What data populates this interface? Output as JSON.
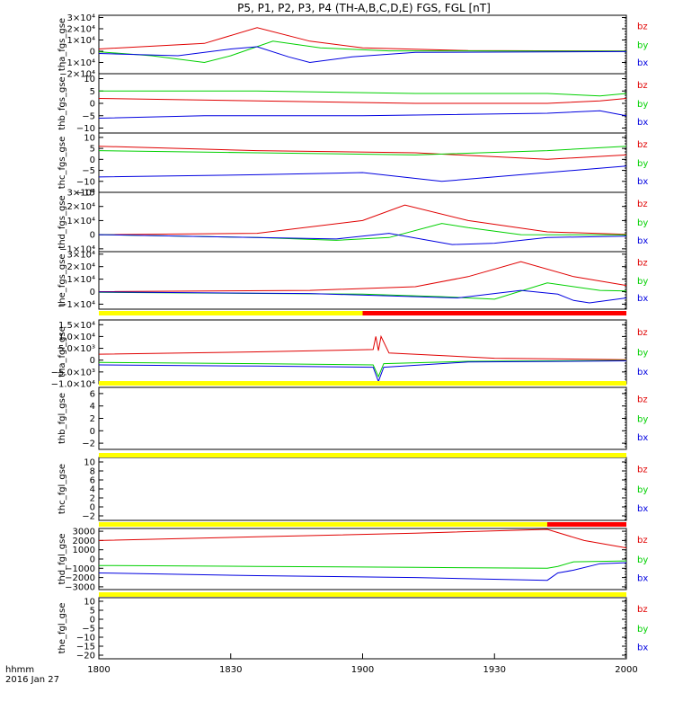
{
  "title": "P5, P1, P2, P3, P4 (TH-A,B,C,D,E) FGS, FGL [nT]",
  "time_axis": {
    "ticks": [
      "1800",
      "1830",
      "1900",
      "1930",
      "2000"
    ],
    "row_label": "hhmm",
    "date_label": "2016 Jan 27"
  },
  "colors": {
    "bz": "#e00000",
    "by": "#00d000",
    "bx": "#0000e0",
    "bar_yellow": "#ffff00",
    "bar_red": "#ff0000"
  },
  "legend": [
    "bz",
    "by",
    "bx"
  ],
  "status_bars": [
    {
      "after_panel": 4,
      "segments": [
        {
          "from": 0,
          "to": 0.5,
          "color": "yellow"
        },
        {
          "from": 0.5,
          "to": 1,
          "color": "red"
        }
      ]
    },
    {
      "after_panel": 5,
      "segments": [
        {
          "from": 0,
          "to": 1,
          "color": "yellow"
        }
      ]
    },
    {
      "after_panel": 6,
      "segments": [
        {
          "from": 0,
          "to": 1,
          "color": "yellow"
        }
      ]
    },
    {
      "after_panel": 7,
      "segments": [
        {
          "from": 0,
          "to": 0.85,
          "color": "yellow"
        },
        {
          "from": 0.85,
          "to": 1,
          "color": "red"
        }
      ]
    },
    {
      "after_panel": 8,
      "segments": [
        {
          "from": 0,
          "to": 1,
          "color": "yellow"
        }
      ]
    }
  ],
  "chart_data": [
    {
      "type": "line",
      "ylabel": "tha_fgs_gse",
      "ticks": [
        "3×10⁴",
        "2×10⁴",
        "1×10⁴",
        "0",
        "−1×10⁴",
        "−2×10⁴"
      ],
      "tick_values": [
        30000,
        20000,
        10000,
        0,
        -10000,
        -20000
      ],
      "ylim": [
        -20000,
        32000
      ],
      "series": [
        {
          "name": "bz",
          "x": [
            0,
            0.2,
            0.3,
            0.4,
            0.5,
            0.7,
            1.0
          ],
          "y": [
            2000,
            7000,
            21000,
            9000,
            3000,
            600,
            200
          ]
        },
        {
          "name": "by",
          "x": [
            0,
            0.1,
            0.2,
            0.25,
            0.33,
            0.42,
            0.55,
            1.0
          ],
          "y": [
            -500,
            -4000,
            -10000,
            -4000,
            9000,
            3000,
            300,
            100
          ]
        },
        {
          "name": "bx",
          "x": [
            0,
            0.15,
            0.25,
            0.3,
            0.36,
            0.4,
            0.48,
            0.6,
            1.0
          ],
          "y": [
            -2000,
            -4000,
            2000,
            4000,
            -5000,
            -10000,
            -5000,
            -1000,
            -300
          ]
        }
      ]
    },
    {
      "type": "line",
      "ylabel": "thb_fgs_gse",
      "ticks": [
        "10",
        "5",
        "0",
        "−5",
        "−10"
      ],
      "tick_values": [
        10,
        5,
        0,
        -5,
        -10
      ],
      "ylim": [
        -12,
        12
      ],
      "series": [
        {
          "name": "bz",
          "x": [
            0,
            0.3,
            0.6,
            0.85,
            0.95,
            1.0
          ],
          "y": [
            2,
            1,
            0,
            0,
            1,
            2
          ]
        },
        {
          "name": "by",
          "x": [
            0,
            0.3,
            0.6,
            0.85,
            0.95,
            1.0
          ],
          "y": [
            5,
            5,
            4,
            4,
            3,
            4
          ]
        },
        {
          "name": "bx",
          "x": [
            0,
            0.2,
            0.5,
            0.85,
            0.95,
            1.0
          ],
          "y": [
            -6,
            -5,
            -5,
            -4,
            -3,
            -5
          ]
        }
      ]
    },
    {
      "type": "line",
      "ylabel": "thc_fgs_gse",
      "ticks": [
        "10",
        "5",
        "0",
        "−5",
        "−10",
        "−15"
      ],
      "tick_values": [
        10,
        5,
        0,
        -5,
        -10,
        -15
      ],
      "ylim": [
        -15,
        12
      ],
      "series": [
        {
          "name": "bz",
          "x": [
            0,
            0.3,
            0.6,
            0.85,
            1.0
          ],
          "y": [
            6,
            4,
            3,
            0,
            2
          ]
        },
        {
          "name": "by",
          "x": [
            0,
            0.3,
            0.6,
            0.85,
            1.0
          ],
          "y": [
            4,
            3,
            2,
            4,
            6
          ]
        },
        {
          "name": "bx",
          "x": [
            0,
            0.3,
            0.5,
            0.65,
            0.8,
            1.0
          ],
          "y": [
            -8,
            -7,
            -6,
            -10,
            -7,
            -3
          ]
        }
      ]
    },
    {
      "type": "line",
      "ylabel": "thd_fgs_gse",
      "ticks": [
        "3×10⁴",
        "2×10⁴",
        "1×10⁴",
        "0",
        "−1×10⁴"
      ],
      "tick_values": [
        30000,
        20000,
        10000,
        0,
        -10000
      ],
      "ylim": [
        -12000,
        30000
      ],
      "series": [
        {
          "name": "bz",
          "x": [
            0,
            0.3,
            0.5,
            0.58,
            0.7,
            0.85,
            1.0
          ],
          "y": [
            0,
            1000,
            10000,
            21000,
            10000,
            2000,
            300
          ]
        },
        {
          "name": "by",
          "x": [
            0,
            0.3,
            0.45,
            0.55,
            0.65,
            0.7,
            0.8,
            1.0
          ],
          "y": [
            0,
            -2000,
            -4000,
            -2000,
            8000,
            5000,
            0,
            -100
          ]
        },
        {
          "name": "bx",
          "x": [
            0,
            0.3,
            0.45,
            0.55,
            0.67,
            0.75,
            0.85,
            1.0
          ],
          "y": [
            0,
            -2000,
            -3000,
            1000,
            -7000,
            -6000,
            -2000,
            -1000
          ]
        }
      ]
    },
    {
      "type": "line",
      "ylabel": "the_fgs_gse",
      "ticks": [
        "3×10⁴",
        "2×10⁴",
        "1×10⁴",
        "0",
        "−1×10⁴"
      ],
      "tick_values": [
        30000,
        20000,
        10000,
        0,
        -10000
      ],
      "ylim": [
        -14000,
        32000
      ],
      "series": [
        {
          "name": "bz",
          "x": [
            0,
            0.4,
            0.6,
            0.7,
            0.8,
            0.9,
            1.0
          ],
          "y": [
            0,
            1000,
            4000,
            12000,
            24000,
            12000,
            5000
          ]
        },
        {
          "name": "by",
          "x": [
            0,
            0.5,
            0.65,
            0.75,
            0.85,
            0.95,
            1.0
          ],
          "y": [
            -500,
            -2000,
            -4000,
            -6000,
            7000,
            1000,
            500
          ]
        },
        {
          "name": "bx",
          "x": [
            0,
            0.4,
            0.68,
            0.8,
            0.87,
            0.9,
            0.93,
            1.0
          ],
          "y": [
            -300,
            -1500,
            -5000,
            1000,
            -2000,
            -7000,
            -9000,
            -5000
          ]
        }
      ]
    },
    {
      "type": "line",
      "ylabel": "tha_fgl_gse",
      "ticks": [
        "1.5×10⁴",
        "1.0×10⁴",
        "5.0×10³",
        "0",
        "−5.0×10³",
        "−1.0×10⁴"
      ],
      "tick_values": [
        15000,
        10000,
        5000,
        0,
        -5000,
        -10000
      ],
      "ylim": [
        -10000,
        17000
      ],
      "series": [
        {
          "name": "bz",
          "x": [
            0,
            0.3,
            0.52,
            0.525,
            0.53,
            0.535,
            0.55,
            0.75,
            1.0
          ],
          "y": [
            2500,
            3500,
            4500,
            10000,
            4000,
            10000,
            3000,
            800,
            200
          ]
        },
        {
          "name": "by",
          "x": [
            0,
            0.3,
            0.52,
            0.53,
            0.54,
            0.7,
            1.0
          ],
          "y": [
            -1000,
            -1500,
            -2000,
            -7000,
            -1500,
            -500,
            -100
          ]
        },
        {
          "name": "bx",
          "x": [
            0,
            0.3,
            0.52,
            0.53,
            0.54,
            0.7,
            1.0
          ],
          "y": [
            -2000,
            -2500,
            -3000,
            -9000,
            -3000,
            -800,
            -300
          ]
        }
      ]
    },
    {
      "type": "line",
      "ylabel": "thb_fgl_gse",
      "ticks": [
        "6",
        "4",
        "2",
        "0",
        "−2"
      ],
      "tick_values": [
        6,
        4,
        2,
        0,
        -2
      ],
      "ylim": [
        -3,
        7
      ],
      "series": []
    },
    {
      "type": "line",
      "ylabel": "thc_fgl_gse",
      "ticks": [
        "10",
        "8",
        "6",
        "4",
        "2",
        "0",
        "−2"
      ],
      "tick_values": [
        10,
        8,
        6,
        4,
        2,
        0,
        -2
      ],
      "ylim": [
        -3,
        11
      ],
      "series": []
    },
    {
      "type": "line",
      "ylabel": "thd_fgl_gse",
      "ticks": [
        "3000",
        "2000",
        "1000",
        "0",
        "−1000",
        "−2000",
        "−3000"
      ],
      "tick_values": [
        3000,
        2000,
        1000,
        0,
        -1000,
        -2000,
        -3000
      ],
      "ylim": [
        -3300,
        3300
      ],
      "series": [
        {
          "name": "bz",
          "x": [
            0,
            0.3,
            0.6,
            0.85,
            0.92,
            1.0
          ],
          "y": [
            2000,
            2400,
            2800,
            3200,
            2000,
            1200
          ]
        },
        {
          "name": "by",
          "x": [
            0,
            0.3,
            0.6,
            0.85,
            0.87,
            0.9,
            1.0
          ],
          "y": [
            -700,
            -800,
            -900,
            -1000,
            -800,
            -300,
            -200
          ]
        },
        {
          "name": "bx",
          "x": [
            0,
            0.3,
            0.6,
            0.85,
            0.87,
            0.9,
            0.95,
            1.0
          ],
          "y": [
            -1500,
            -1800,
            -2000,
            -2300,
            -1500,
            -1200,
            -500,
            -400
          ]
        }
      ]
    },
    {
      "type": "line",
      "ylabel": "the_fgl_gse",
      "ticks": [
        "10",
        "5",
        "0",
        "−5",
        "−10",
        "−15",
        "−20"
      ],
      "tick_values": [
        10,
        5,
        0,
        -5,
        -10,
        -15,
        -20
      ],
      "ylim": [
        -22,
        12
      ],
      "series": []
    }
  ]
}
